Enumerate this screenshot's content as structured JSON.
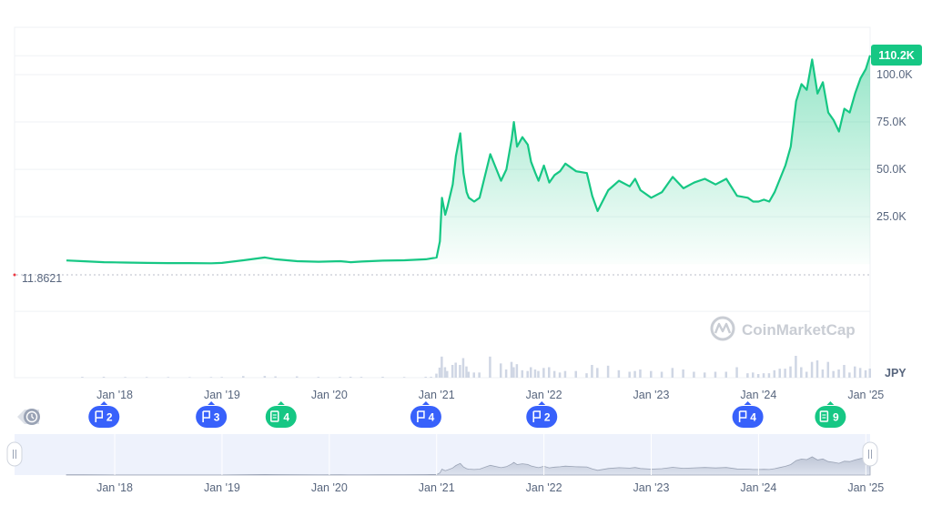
{
  "chart_data": {
    "type": "area",
    "currency": "JPY",
    "current_price_label": "110.2K",
    "baseline_label": "11.8621",
    "y_ticks": [
      {
        "label": "25.0K",
        "value": 25000
      },
      {
        "label": "50.0K",
        "value": 50000
      },
      {
        "label": "75.0K",
        "value": 75000
      },
      {
        "label": "100.0K",
        "value": 100000
      }
    ],
    "ylim": [
      -60000,
      125000
    ],
    "x_ticks": [
      "Jan '18",
      "Jan '19",
      "Jan '20",
      "Jan '21",
      "Jan '22",
      "Jan '23",
      "Jan '24",
      "Jan '25"
    ],
    "x_tick_values": [
      2018,
      2019,
      2020,
      2021,
      2022,
      2023,
      2024,
      2025
    ],
    "xlim": [
      2017.55,
      2025.04
    ],
    "x": [
      2017.55,
      2017.7,
      2017.9,
      2018.1,
      2018.3,
      2018.5,
      2018.7,
      2018.9,
      2019.0,
      2019.2,
      2019.4,
      2019.5,
      2019.7,
      2019.9,
      2020.1,
      2020.2,
      2020.3,
      2020.5,
      2020.7,
      2020.9,
      2020.95,
      2021.0,
      2021.03,
      2021.05,
      2021.08,
      2021.1,
      2021.15,
      2021.18,
      2021.22,
      2021.25,
      2021.28,
      2021.3,
      2021.35,
      2021.4,
      2021.5,
      2021.6,
      2021.65,
      2021.7,
      2021.72,
      2021.75,
      2021.8,
      2021.85,
      2021.88,
      2021.92,
      2021.95,
      2022.0,
      2022.05,
      2022.1,
      2022.15,
      2022.2,
      2022.3,
      2022.4,
      2022.45,
      2022.5,
      2022.6,
      2022.7,
      2022.8,
      2022.85,
      2022.9,
      2023.0,
      2023.1,
      2023.2,
      2023.3,
      2023.4,
      2023.5,
      2023.6,
      2023.7,
      2023.8,
      2023.9,
      2023.95,
      2024.0,
      2024.05,
      2024.1,
      2024.15,
      2024.2,
      2024.25,
      2024.3,
      2024.35,
      2024.4,
      2024.45,
      2024.5,
      2024.55,
      2024.6,
      2024.65,
      2024.7,
      2024.75,
      2024.8,
      2024.85,
      2024.9,
      2024.95,
      2025.0,
      2025.04
    ],
    "series": [
      {
        "values": [
          1900,
          1500,
          1000,
          800,
          600,
          500,
          500,
          400,
          600,
          2000,
          3500,
          2500,
          1500,
          1200,
          1500,
          1000,
          1300,
          1800,
          2000,
          2500,
          3000,
          3500,
          12000,
          35000,
          26000,
          30000,
          42000,
          57000,
          69000,
          48000,
          38000,
          35000,
          33000,
          35000,
          58000,
          44000,
          50000,
          66000,
          75000,
          62000,
          67000,
          63000,
          54000,
          48000,
          44000,
          52000,
          43000,
          47000,
          49000,
          53000,
          49000,
          48000,
          36000,
          28000,
          39000,
          44000,
          41000,
          45000,
          39000,
          35000,
          38000,
          46000,
          40000,
          43000,
          45000,
          42000,
          45000,
          36000,
          35000,
          33000,
          33000,
          34000,
          33000,
          38000,
          45000,
          52000,
          62000,
          86000,
          95000,
          92000,
          108000,
          90000,
          96000,
          80000,
          76000,
          70000,
          82000,
          80000,
          90000,
          98000,
          103000,
          110200
        ]
      }
    ],
    "legend_badges": [
      {
        "type": "history",
        "label": ""
      },
      {
        "type": "flag",
        "label": "2",
        "x": 2017.9
      },
      {
        "type": "flag",
        "label": "3",
        "x": 2018.9
      },
      {
        "type": "news",
        "label": "4",
        "x": 2019.55
      },
      {
        "type": "flag",
        "label": "4",
        "x": 2020.9
      },
      {
        "type": "flag",
        "label": "2",
        "x": 2021.98
      },
      {
        "type": "flag",
        "label": "4",
        "x": 2023.9
      },
      {
        "type": "news",
        "label": "9",
        "x": 2024.67
      }
    ],
    "navigator_ticks": [
      "Jan '18",
      "Jan '19",
      "Jan '20",
      "Jan '21",
      "Jan '22",
      "Jan '23",
      "Jan '24",
      "Jan '25"
    ],
    "watermark": "CoinMarketCap",
    "colors": {
      "line": "#16c784",
      "area_top": "#16c784",
      "price_tag": "#16c784",
      "flag_badge": "#3861fb",
      "news_badge": "#16c784",
      "navigator_bg": "#eef2fc",
      "text": "#58667e"
    },
    "grid": true
  }
}
